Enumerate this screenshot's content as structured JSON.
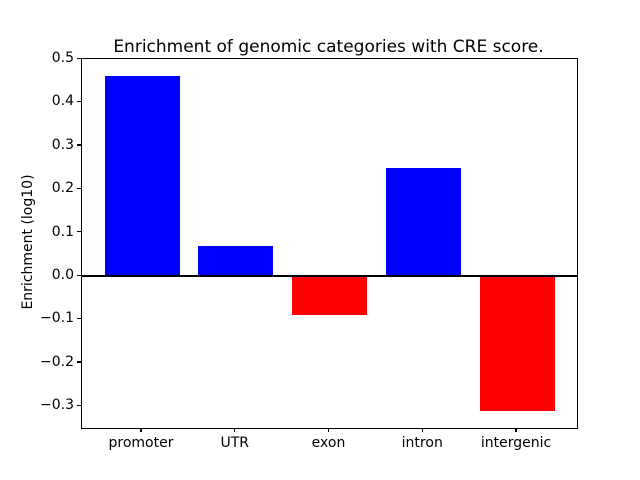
{
  "chart_data": {
    "type": "bar",
    "title": "Enrichment of genomic categories with CRE score.",
    "xlabel": "",
    "ylabel": "Enrichment (log10)",
    "categories": [
      "promoter",
      "UTR",
      "exon",
      "intron",
      "intergenic"
    ],
    "values": [
      0.46,
      0.07,
      -0.09,
      0.25,
      -0.31
    ],
    "bar_colors": [
      "#0000ff",
      "#0000ff",
      "#ff0000",
      "#0000ff",
      "#ff0000"
    ],
    "positive_color": "#0000ff",
    "negative_color": "#ff0000",
    "ylim": [
      -0.35,
      0.5
    ],
    "ytick_values": [
      0.5,
      0.4,
      0.3,
      0.2,
      0.1,
      0.0,
      -0.1,
      -0.2,
      -0.3
    ],
    "ytick_labels": [
      "0.5",
      "0.4",
      "0.3",
      "0.2",
      "0.1",
      "0.0",
      "−0.1",
      "−0.2",
      "−0.3"
    ],
    "grid": false,
    "legend": false,
    "zero_line": true,
    "axis_color": "#000000",
    "background_color": "#ffffff"
  }
}
